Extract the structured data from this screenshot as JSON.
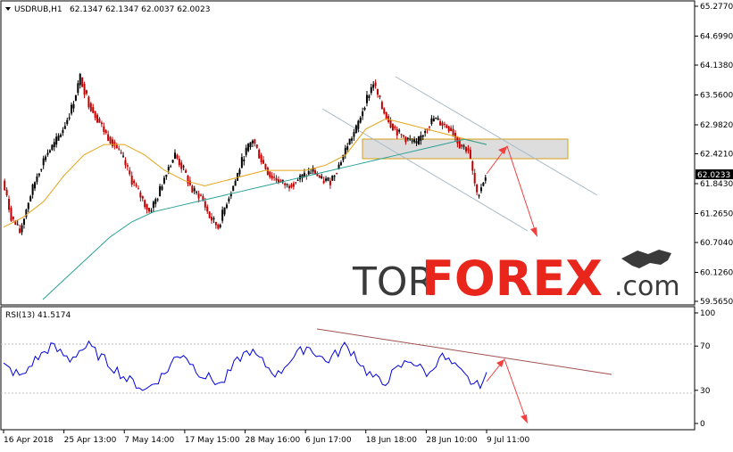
{
  "header": {
    "symbol": "USDRUB,H1",
    "ohlc": "62.1347 62.1347 62.0037 62.0023"
  },
  "price_panel": {
    "current_price_label": "62.0233"
  },
  "rsi_panel": {
    "label": "RSI(13) 41.5174"
  },
  "watermark": {
    "part1": "TOR",
    "part2": "FOREX",
    "part3": ".com"
  },
  "colors": {
    "up_candle": "#000000",
    "down_candle": "#c00000",
    "ma_fast": "#e6a317",
    "ma_slow": "#2aa198",
    "channel": "#a9b9c6",
    "resistance_zone": "#cccccc",
    "projection_arrow": "#f04040",
    "rsi_line": "#0000dd",
    "rsi_trendline": "#a05050",
    "brand_red": "#e8261c",
    "brand_dark": "#3a3a3a"
  },
  "chart_data": [
    {
      "type": "line",
      "title": "",
      "series_name": "USDRUB H1 candlesticks (approximate closes)",
      "x_tick_labels": [
        "16 Apr 2018",
        "25 Apr 13:00",
        "7 May 14:00",
        "17 May 15:00",
        "28 May 16:00",
        "6 Jun 17:00",
        "18 Jun 18:00",
        "28 Jun 10:00",
        "9 Jul 11:00"
      ],
      "y_tick_labels": [
        "65.2770",
        "64.6990",
        "64.1380",
        "63.5600",
        "62.9820",
        "62.4210",
        "61.8430",
        "61.2650",
        "60.7040",
        "60.1260",
        "59.5650"
      ],
      "ylim": [
        59.565,
        65.277
      ],
      "closes": [
        61.9,
        61.2,
        60.9,
        61.5,
        62.0,
        62.4,
        62.6,
        62.9,
        63.3,
        63.9,
        63.4,
        63.1,
        62.8,
        62.6,
        62.3,
        61.9,
        61.6,
        61.3,
        61.6,
        62.1,
        62.4,
        62.1,
        61.7,
        61.6,
        61.2,
        61.0,
        61.5,
        61.9,
        62.4,
        62.7,
        62.3,
        62.0,
        61.9,
        61.8,
        61.9,
        62.0,
        62.1,
        61.9,
        61.9,
        62.2,
        62.6,
        62.9,
        63.4,
        63.8,
        63.3,
        63.0,
        62.8,
        62.7,
        62.6,
        62.9,
        63.1,
        63.0,
        62.9,
        62.6,
        62.5,
        61.6,
        62.0
      ],
      "moving_averages": [
        {
          "name": "MA fast",
          "values": [
            61.0,
            61.2,
            61.5,
            62.0,
            62.4,
            62.6,
            62.6,
            62.4,
            62.1,
            61.9,
            61.8,
            61.9,
            62.0,
            62.1,
            62.1,
            62.1,
            62.2,
            62.4,
            62.9,
            63.1,
            63.0,
            62.9,
            62.8,
            62.7,
            62.6
          ]
        },
        {
          "name": "MA slow",
          "values": [
            59.6,
            60.0,
            60.4,
            60.8,
            61.1,
            61.3,
            61.4,
            61.5,
            61.6,
            61.7,
            61.8,
            61.9,
            62.0,
            62.1,
            62.2,
            62.3,
            62.4,
            62.5,
            62.6,
            62.7,
            62.6
          ]
        }
      ],
      "annotations": [
        "descending channel",
        "resistance zone 62.45-62.75",
        "projected bounce to 62.55 then decline to 60.80"
      ]
    },
    {
      "type": "line",
      "title": "",
      "series_name": "RSI(13)",
      "y_tick_labels": [
        "100",
        "70",
        "30",
        "0"
      ],
      "ylim": [
        0,
        100
      ],
      "values": [
        52,
        47,
        42,
        55,
        62,
        70,
        64,
        58,
        66,
        70,
        62,
        55,
        48,
        40,
        36,
        30,
        38,
        45,
        58,
        64,
        52,
        44,
        40,
        35,
        48,
        60,
        66,
        58,
        50,
        44,
        56,
        62,
        70,
        64,
        56,
        62,
        70,
        64,
        50,
        42,
        36,
        44,
        52,
        58,
        50,
        44,
        62,
        56,
        48,
        40,
        34,
        42
      ],
      "annotations": [
        "descending RSI trendline",
        "projected rebound to 58 then drop to 8"
      ]
    }
  ]
}
